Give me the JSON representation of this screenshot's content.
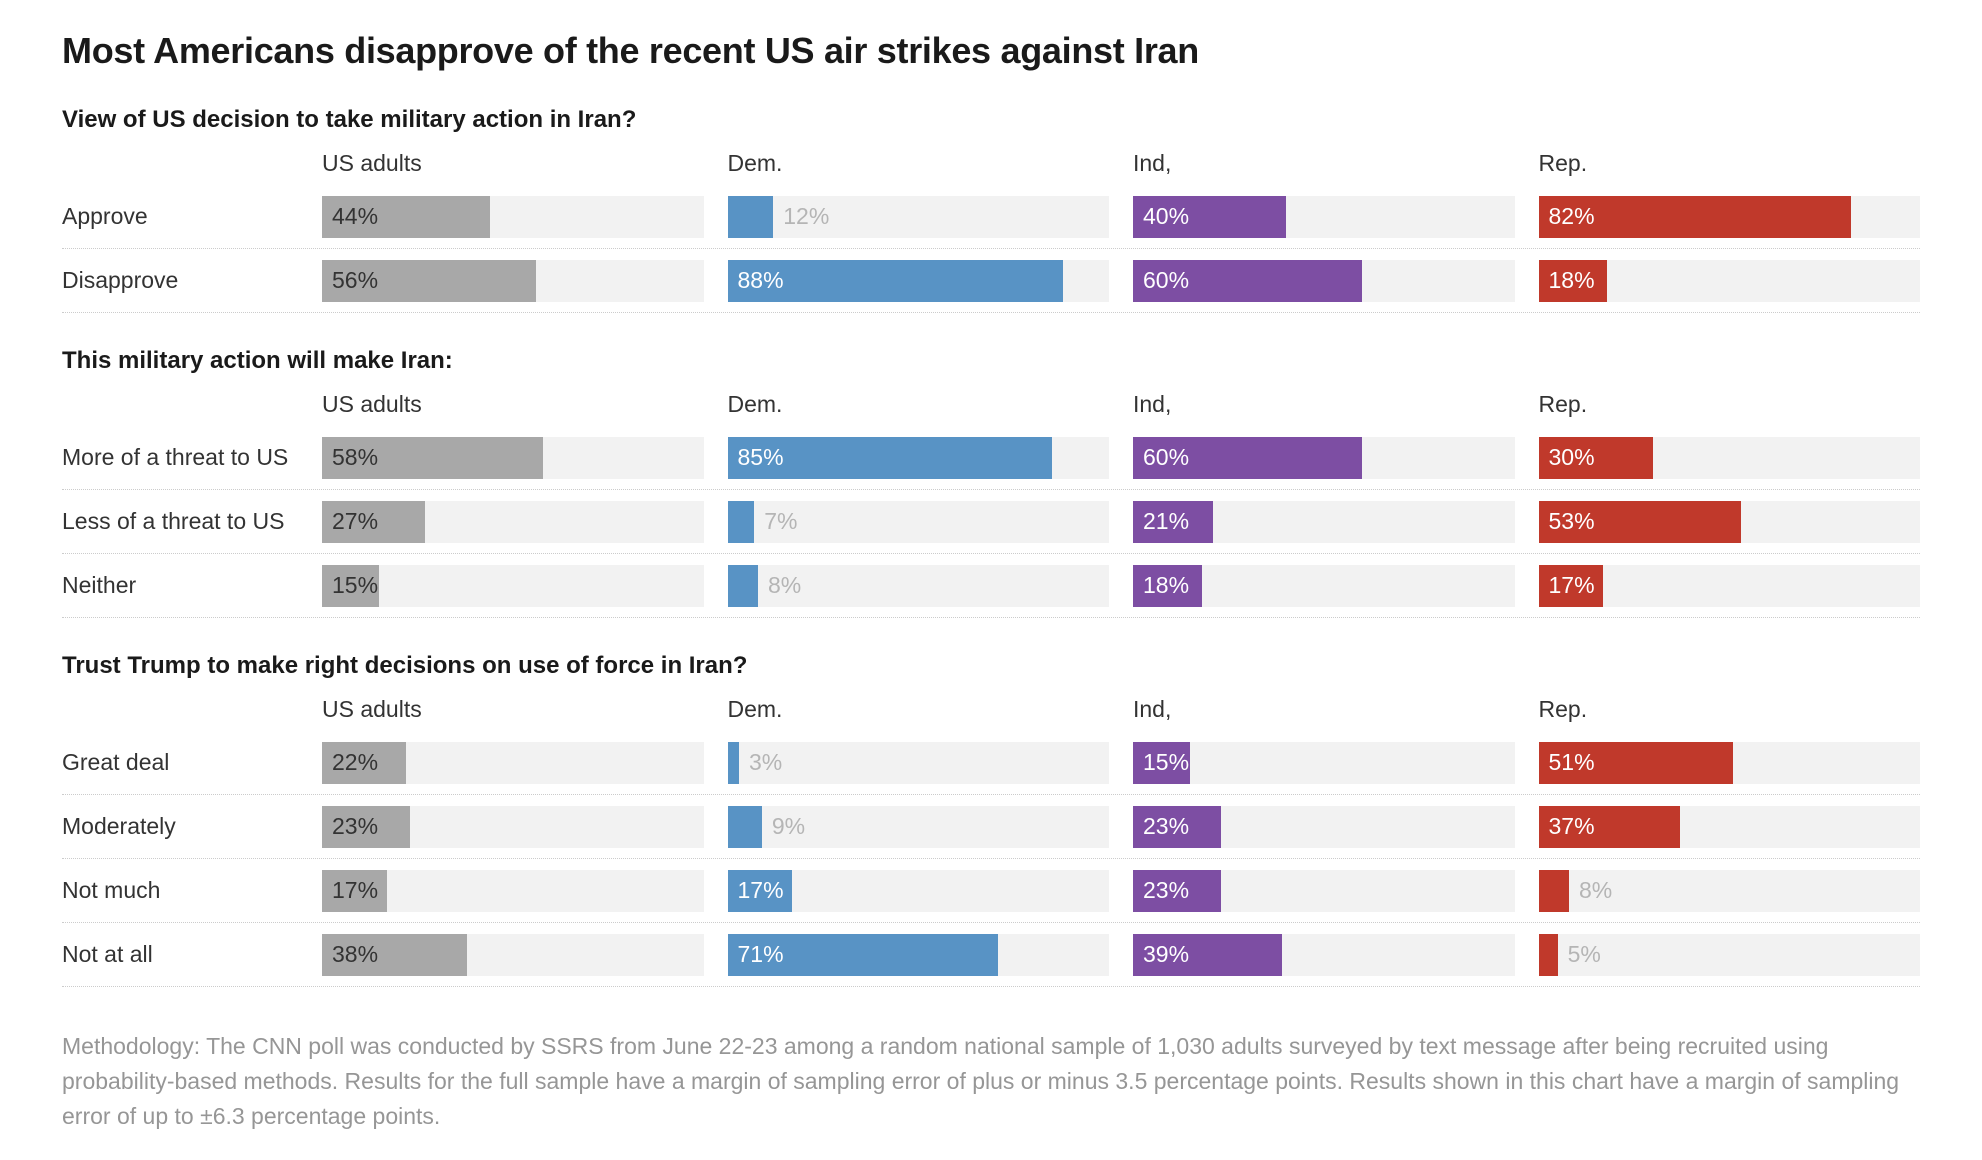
{
  "page": {
    "title": "Most Americans disapprove of the recent US air strikes against Iran",
    "methodology": "Methodology: The CNN poll was conducted by SSRS from June 22-23 among a random national sample of 1,030 adults surveyed by text message after being recruited using probability-based methods. Results for the full sample have a margin of sampling error of plus or minus 3.5 percentage points. Results shown in this chart have a margin of sampling error of up to ±6.3 percentage points."
  },
  "chart_data": {
    "type": "bar",
    "orientation": "horizontal",
    "unit": "%",
    "xlim": [
      0,
      100
    ],
    "grid": false,
    "legend_position": "column-headers-repeated-per-section",
    "title": "Most Americans disapprove of the recent US air strikes against Iran",
    "track_color": "#f2f2f2",
    "value_label_inside_threshold": 15,
    "columns": [
      {
        "label": "US adults",
        "color": "#a8a8a8",
        "inside_text_color": "#333333"
      },
      {
        "label": "Dem.",
        "color": "#5893c5",
        "inside_text_color": "#ffffff"
      },
      {
        "label": "Ind,",
        "color": "#7d4ea3",
        "inside_text_color": "#ffffff"
      },
      {
        "label": "Rep.",
        "color": "#c0392b",
        "inside_text_color": "#ffffff"
      }
    ],
    "sections": [
      {
        "heading": "View of US decision to take military action in Iran?",
        "rows": [
          {
            "label": "Approve",
            "values": [
              44,
              12,
              40,
              82
            ]
          },
          {
            "label": "Disapprove",
            "values": [
              56,
              88,
              60,
              18
            ]
          }
        ]
      },
      {
        "heading": "This military action will make Iran:",
        "rows": [
          {
            "label": "More of a threat to US",
            "values": [
              58,
              85,
              60,
              30
            ]
          },
          {
            "label": "Less of a threat to US",
            "values": [
              27,
              7,
              21,
              53
            ]
          },
          {
            "label": "Neither",
            "values": [
              15,
              8,
              18,
              17
            ]
          }
        ]
      },
      {
        "heading": "Trust Trump to make right decisions on use of force in Iran?",
        "rows": [
          {
            "label": "Great deal",
            "values": [
              22,
              3,
              15,
              51
            ]
          },
          {
            "label": "Moderately",
            "values": [
              23,
              9,
              23,
              37
            ]
          },
          {
            "label": "Not much",
            "values": [
              17,
              17,
              23,
              8
            ]
          },
          {
            "label": "Not at all",
            "values": [
              38,
              71,
              39,
              5
            ]
          }
        ]
      }
    ]
  }
}
